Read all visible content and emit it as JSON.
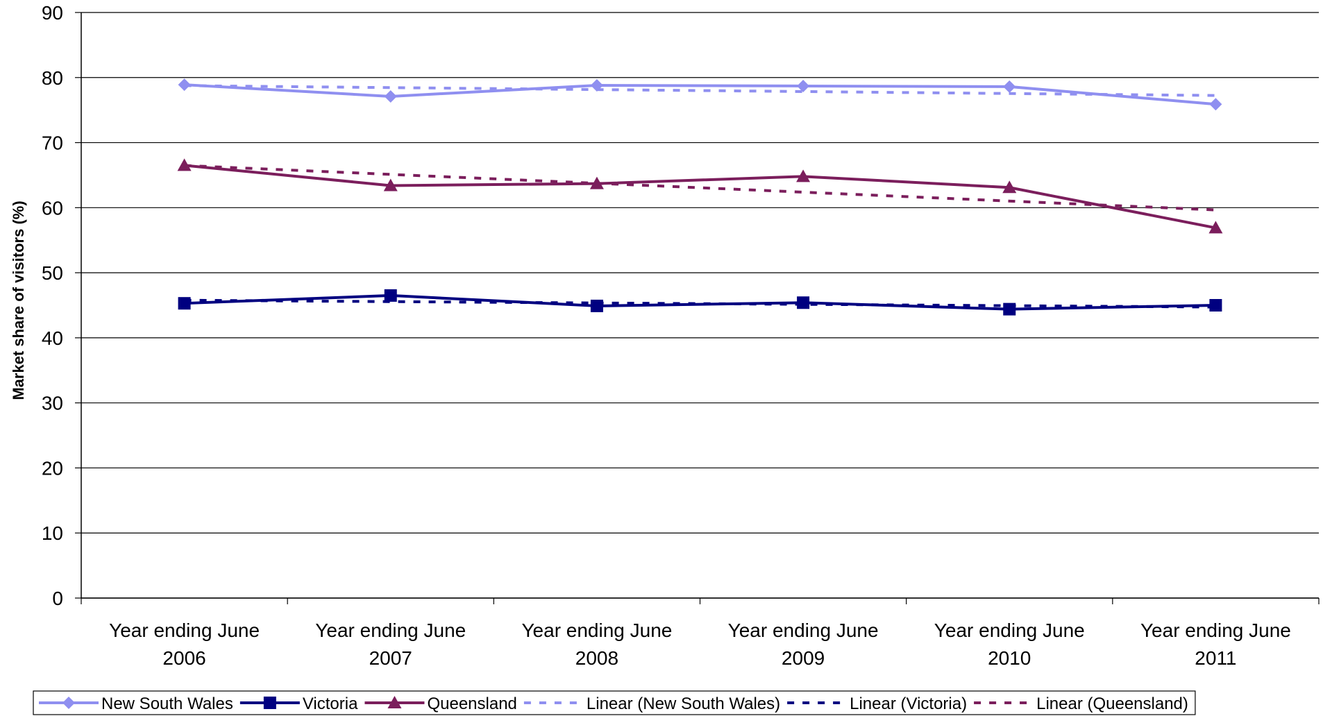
{
  "chart_data": {
    "type": "line",
    "title": "",
    "xlabel": "",
    "ylabel": "Market share of visitors (%)",
    "ylim": [
      0,
      90
    ],
    "yticks": [
      0,
      10,
      20,
      30,
      40,
      50,
      60,
      70,
      80,
      90
    ],
    "grid": "horizontal",
    "legend": "bottom",
    "categories": [
      [
        "Year ending June",
        "2006"
      ],
      [
        "Year ending June",
        "2007"
      ],
      [
        "Year ending June",
        "2008"
      ],
      [
        "Year ending June",
        "2009"
      ],
      [
        "Year ending June",
        "2010"
      ],
      [
        "Year ending June",
        "2011"
      ]
    ],
    "series": [
      {
        "name": "New South Wales",
        "values": [
          78.9,
          77.1,
          78.8,
          78.7,
          78.6,
          75.9
        ],
        "color": "#8f8ff0",
        "marker": "diamond"
      },
      {
        "name": "Victoria",
        "values": [
          45.3,
          46.5,
          44.9,
          45.4,
          44.4,
          45.0
        ],
        "color": "#000080",
        "marker": "square"
      },
      {
        "name": "Queensland",
        "values": [
          66.5,
          63.4,
          63.7,
          64.8,
          63.1,
          56.9
        ],
        "color": "#7b1e5c",
        "marker": "triangle"
      }
    ],
    "trendlines": [
      {
        "name": "Linear (New South Wales)",
        "of": "New South Wales",
        "type": "linear",
        "color": "#8f8ff0"
      },
      {
        "name": "Linear (Victoria)",
        "of": "Victoria",
        "type": "linear",
        "color": "#000080"
      },
      {
        "name": "Linear (Queensland)",
        "of": "Queensland",
        "type": "linear",
        "color": "#7b1e5c"
      }
    ]
  }
}
